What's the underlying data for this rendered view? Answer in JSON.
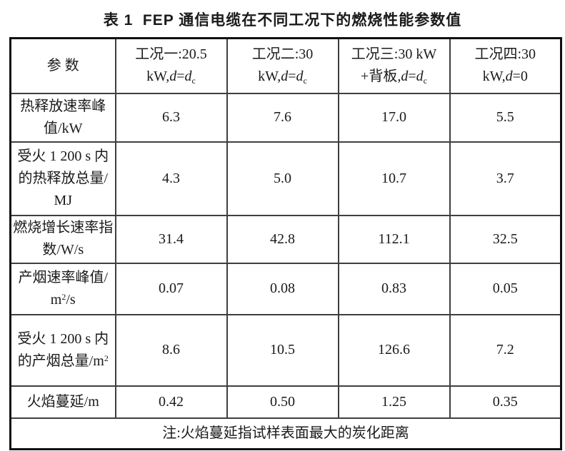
{
  "caption": "表 1  FEP 通信电缆在不同工况下的燃烧性能参数值",
  "colors": {
    "text": "#1a1a1a",
    "border_outer": "#101010",
    "border_inner": "#3f3f3f",
    "background": "#ffffff"
  },
  "table": {
    "param_header": "参 数",
    "conditions": [
      {
        "line1": "工况一:20.5",
        "pre": "kW,",
        "d1": "d",
        "eq": "=",
        "d2": "d",
        "sub": "c"
      },
      {
        "line1": "工况二:30",
        "pre": "kW,",
        "d1": "d",
        "eq": "=",
        "d2": "d",
        "sub": "c"
      },
      {
        "line1": "工况三:30 kW",
        "pre": "+背板,",
        "d1": "d",
        "eq": "=",
        "d2": "d",
        "sub": "c"
      },
      {
        "line1": "工况四:30",
        "pre": "kW,",
        "d1": "d",
        "eq": "=0"
      }
    ],
    "rows": [
      {
        "label": "热释放速率峰值/kW",
        "values": [
          "6.3",
          "7.6",
          "17.0",
          "5.5"
        ]
      },
      {
        "label": "受火 1 200 s 内的热释放总量/MJ",
        "values": [
          "4.3",
          "5.0",
          "10.7",
          "3.7"
        ]
      },
      {
        "label": "燃烧增长速率指数/W/s",
        "values": [
          "31.4",
          "42.8",
          "112.1",
          "32.5"
        ]
      },
      {
        "label": "产烟速率峰值/m",
        "label_sup": "2",
        "label_after": "/s",
        "values": [
          "0.07",
          "0.08",
          "0.83",
          "0.05"
        ]
      },
      {
        "label": "受火 1 200 s 内的产烟总量/m",
        "label_sup": "2",
        "values": [
          "8.6",
          "10.5",
          "126.6",
          "7.2"
        ]
      },
      {
        "label": "火焰蔓延/m",
        "values": [
          "0.42",
          "0.50",
          "1.25",
          "0.35"
        ]
      }
    ],
    "note": "注:火焰蔓延指试样表面最大的炭化距离"
  }
}
